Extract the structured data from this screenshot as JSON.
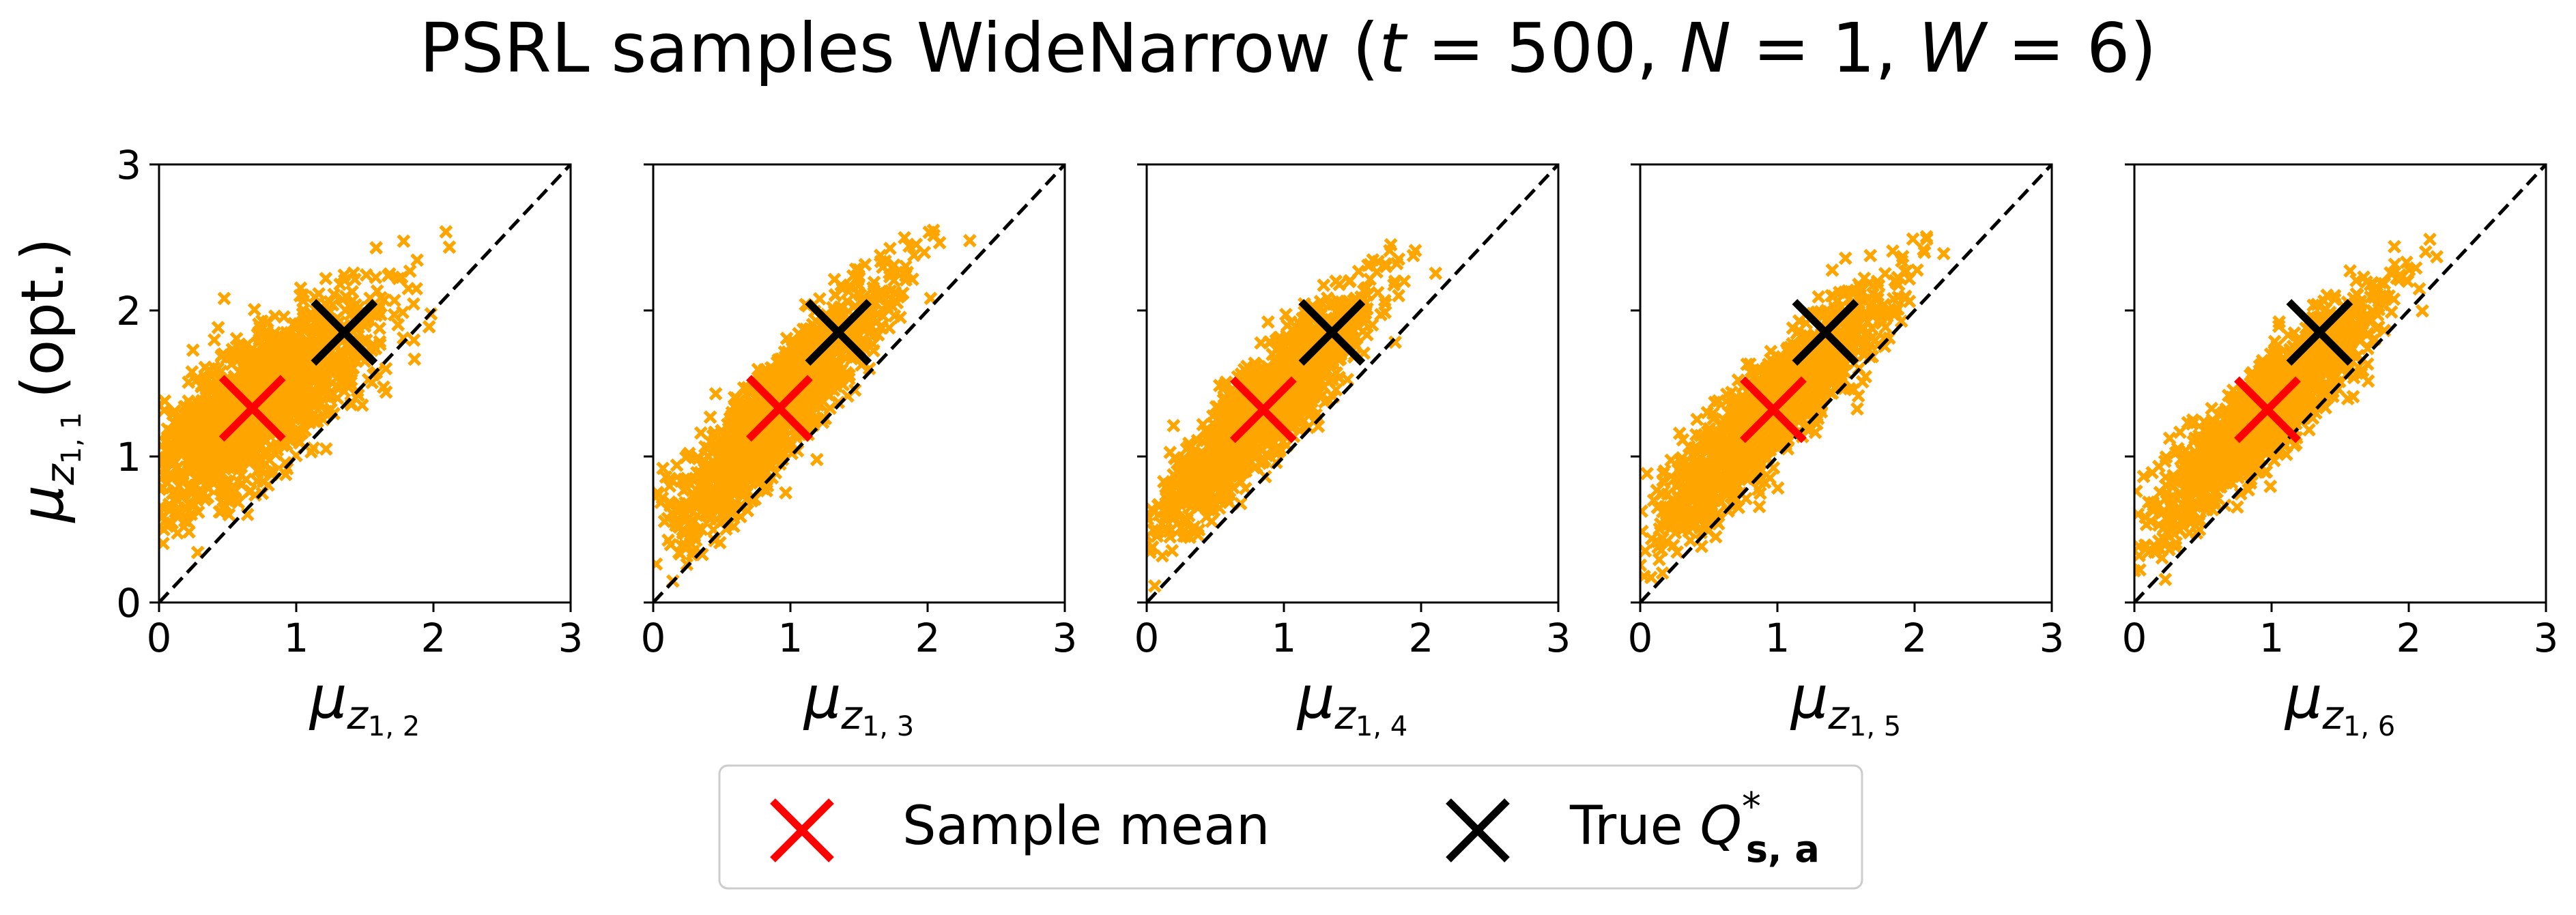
{
  "title": {
    "prefix": "PSRL samples WideNarrow (",
    "t_sym": "t",
    "t_val": " = 500, ",
    "n_sym": "N",
    "n_val": " = 1, ",
    "w_sym": "W",
    "w_val": " = 6)"
  },
  "shared_ylabel": {
    "mu": "μ",
    "sub_z": "z",
    "sub_idx": "1, 1",
    "suffix": "(opt.)"
  },
  "legend": {
    "sample_mean_label": "Sample mean",
    "true_q_label_prefix": "True ",
    "true_q_symbol": "Q",
    "true_q_sup": "*",
    "true_q_sub": "s, a"
  },
  "colors": {
    "samples": "#ffa500",
    "sample_mean": "#ff0000",
    "true_q": "#000000",
    "diagonal": "#000000"
  },
  "chart_data": [
    {
      "type": "scatter",
      "xlabel": {
        "mu": "μ",
        "sub_z": "z",
        "sub_idx": "1, 2"
      },
      "ylabel": "μz1,1 (opt.)",
      "xlim": [
        0,
        3
      ],
      "ylim": [
        0,
        3
      ],
      "xticks": [
        0,
        1,
        2,
        3
      ],
      "yticks": [
        0,
        1,
        2,
        3
      ],
      "show_yticklabels": true,
      "grid": false,
      "diagonal": "y = x (dashed)",
      "samples": {
        "marker": "x",
        "count": 1500,
        "mean_x": 0.68,
        "mean_y": 1.33,
        "sd_x": 0.45,
        "sd_y": 0.38,
        "corr": 0.78,
        "x_range": [
          0.0,
          2.55
        ],
        "y_range": [
          0.2,
          2.55
        ]
      },
      "sample_mean": {
        "x": 0.68,
        "y": 1.33
      },
      "true_q": {
        "x": 1.35,
        "y": 1.85
      }
    },
    {
      "type": "scatter",
      "xlabel": {
        "mu": "μ",
        "sub_z": "z",
        "sub_idx": "1, 3"
      },
      "xlim": [
        0,
        3
      ],
      "ylim": [
        0,
        3
      ],
      "xticks": [
        0,
        1,
        2,
        3
      ],
      "yticks": [
        0,
        1,
        2,
        3
      ],
      "show_yticklabels": false,
      "grid": false,
      "diagonal": "y = x (dashed)",
      "samples": {
        "marker": "x",
        "count": 1500,
        "mean_x": 0.92,
        "mean_y": 1.33,
        "sd_x": 0.38,
        "sd_y": 0.42,
        "corr": 0.9,
        "x_range": [
          0.0,
          2.55
        ],
        "y_range": [
          0.1,
          2.55
        ]
      },
      "sample_mean": {
        "x": 0.92,
        "y": 1.33
      },
      "true_q": {
        "x": 1.35,
        "y": 1.85
      }
    },
    {
      "type": "scatter",
      "xlabel": {
        "mu": "μ",
        "sub_z": "z",
        "sub_idx": "1, 4"
      },
      "xlim": [
        0,
        3
      ],
      "ylim": [
        0,
        3
      ],
      "xticks": [
        0,
        1,
        2,
        3
      ],
      "yticks": [
        0,
        1,
        2,
        3
      ],
      "show_yticklabels": false,
      "grid": false,
      "diagonal": "y = x (dashed)",
      "samples": {
        "marker": "x",
        "count": 1500,
        "mean_x": 0.85,
        "mean_y": 1.32,
        "sd_x": 0.38,
        "sd_y": 0.4,
        "corr": 0.9,
        "x_range": [
          0.0,
          2.2
        ],
        "y_range": [
          0.1,
          2.45
        ]
      },
      "sample_mean": {
        "x": 0.85,
        "y": 1.32
      },
      "true_q": {
        "x": 1.35,
        "y": 1.85
      }
    },
    {
      "type": "scatter",
      "xlabel": {
        "mu": "μ",
        "sub_z": "z",
        "sub_idx": "1, 5"
      },
      "xlim": [
        0,
        3
      ],
      "ylim": [
        0,
        3
      ],
      "xticks": [
        0,
        1,
        2,
        3
      ],
      "yticks": [
        0,
        1,
        2,
        3
      ],
      "show_yticklabels": false,
      "grid": false,
      "diagonal": "y = x (dashed)",
      "samples": {
        "marker": "x",
        "count": 1500,
        "mean_x": 0.97,
        "mean_y": 1.32,
        "sd_x": 0.4,
        "sd_y": 0.4,
        "corr": 0.9,
        "x_range": [
          0.0,
          2.5
        ],
        "y_range": [
          0.1,
          2.6
        ]
      },
      "sample_mean": {
        "x": 0.97,
        "y": 1.32
      },
      "true_q": {
        "x": 1.35,
        "y": 1.85
      }
    },
    {
      "type": "scatter",
      "xlabel": {
        "mu": "μ",
        "sub_z": "z",
        "sub_idx": "1, 6"
      },
      "xlim": [
        0,
        3
      ],
      "ylim": [
        0,
        3
      ],
      "xticks": [
        0,
        1,
        2,
        3
      ],
      "yticks": [
        0,
        1,
        2,
        3
      ],
      "show_yticklabels": false,
      "grid": false,
      "diagonal": "y = x (dashed)",
      "samples": {
        "marker": "x",
        "count": 1500,
        "mean_x": 0.97,
        "mean_y": 1.32,
        "sd_x": 0.4,
        "sd_y": 0.4,
        "corr": 0.9,
        "x_range": [
          0.0,
          2.6
        ],
        "y_range": [
          0.05,
          2.55
        ]
      },
      "sample_mean": {
        "x": 0.97,
        "y": 1.32
      },
      "true_q": {
        "x": 1.35,
        "y": 1.85
      }
    }
  ]
}
